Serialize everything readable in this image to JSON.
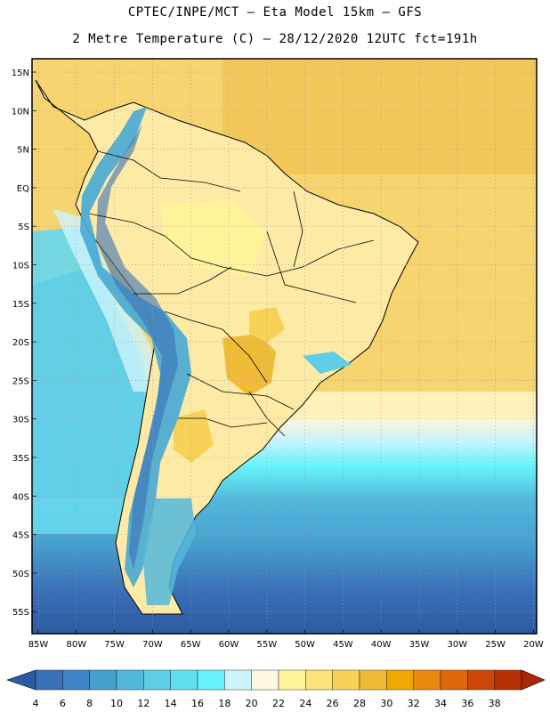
{
  "title_line1": "CPTEC/INPE/MCT  –  Eta Model 15km – GFS",
  "title_line2": "2 Metre Temperature (C) – 28/12/2020 12UTC fct=191h",
  "lat_labels": [
    "15N",
    "10N",
    "5N",
    "EQ",
    "5S",
    "10S",
    "15S",
    "20S",
    "25S",
    "30S",
    "35S",
    "40S",
    "45S",
    "50S",
    "55S"
  ],
  "lon_labels": [
    "85W",
    "80W",
    "75W",
    "70W",
    "65W",
    "60W",
    "55W",
    "50W",
    "45W",
    "40W",
    "35W",
    "30W",
    "25W",
    "20W"
  ],
  "colorbar": {
    "ticks": [
      "4",
      "6",
      "8",
      "10",
      "12",
      "14",
      "16",
      "18",
      "20",
      "22",
      "24",
      "26",
      "28",
      "30",
      "32",
      "34",
      "36",
      "38"
    ],
    "colors": [
      "#3a70b8",
      "#3f84c4",
      "#46a0ce",
      "#52b8da",
      "#5fcde6",
      "#5fe0ee",
      "#66f4fa",
      "#cdf4fc",
      "#fff8e0",
      "#fff49a",
      "#fce27a",
      "#f8d256",
      "#f0bc38",
      "#f0a800",
      "#e88a10",
      "#df6808",
      "#cc4808",
      "#b83006"
    ],
    "under_color": "#2c5aa0",
    "over_color": "#a82806"
  },
  "map": {
    "ocean_color": "#f6d470",
    "land_color": "#fdeaa5",
    "andes_color": "#46a9d5"
  }
}
